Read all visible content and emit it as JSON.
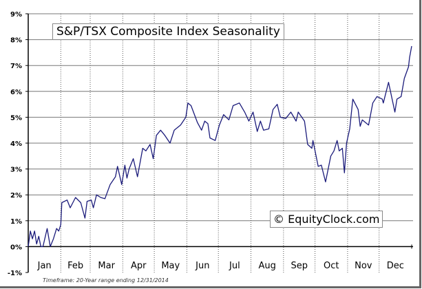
{
  "chart_data": {
    "type": "line",
    "title": "S&P/TSX Composite Index Seasonality",
    "watermark": "© EquityClock.com",
    "footnote": "Timeframe: 20-Year range ending 12/31/2014",
    "xlabel": "",
    "ylabel": "",
    "ylim": [
      -1,
      9
    ],
    "xlim": [
      0,
      365
    ],
    "yticks": [
      -1,
      0,
      1,
      2,
      3,
      4,
      5,
      6,
      7,
      8,
      9
    ],
    "ytick_labels": [
      "-1%",
      "0%",
      "1%",
      "2%",
      "3%",
      "4%",
      "5%",
      "6%",
      "7%",
      "8%",
      "9%"
    ],
    "month_labels": [
      "Jan",
      "Feb",
      "Mar",
      "Apr",
      "May",
      "Jun",
      "Jul",
      "Aug",
      "Sep",
      "Oct",
      "Nov",
      "Dec"
    ],
    "month_starts": [
      0,
      31,
      59,
      90,
      120,
      151,
      181,
      212,
      243,
      273,
      304,
      334,
      365
    ],
    "grid": true,
    "line_color": "#1a1a7a",
    "series": [
      {
        "name": "S&P/TSX Composite Index Seasonality",
        "x": [
          0,
          2,
          4,
          6,
          8,
          10,
          12,
          14,
          18,
          21,
          24,
          27,
          29,
          31,
          32,
          37,
          40,
          45,
          50,
          54,
          56,
          60,
          62,
          65,
          69,
          73,
          78,
          83,
          85,
          89,
          92,
          94,
          96,
          100,
          104,
          109,
          112,
          116,
          119,
          122,
          126,
          130,
          135,
          139,
          145,
          150,
          152,
          155,
          161,
          165,
          168,
          171,
          173,
          178,
          182,
          186,
          191,
          195,
          201,
          206,
          210,
          214,
          218,
          221,
          224,
          229,
          233,
          237,
          240,
          245,
          250,
          255,
          257,
          263,
          266,
          270,
          271,
          276,
          279,
          283,
          288,
          291,
          294,
          296,
          299,
          301,
          303,
          306,
          309,
          314,
          316,
          318,
          324,
          328,
          332,
          337,
          338,
          343,
          349,
          351,
          355,
          358,
          362,
          363,
          365
        ],
        "values": [
          0,
          0.6,
          0.3,
          0.6,
          0.1,
          0.4,
          0,
          0,
          0.7,
          0,
          0.3,
          0.7,
          0.6,
          0.85,
          1.7,
          1.8,
          1.5,
          1.9,
          1.7,
          1.1,
          1.75,
          1.8,
          1.5,
          2.0,
          1.9,
          1.85,
          2.4,
          2.7,
          3.1,
          2.4,
          3.15,
          2.65,
          3.0,
          3.4,
          2.7,
          3.8,
          3.7,
          3.95,
          3.4,
          4.3,
          4.5,
          4.3,
          4.0,
          4.5,
          4.7,
          5.0,
          5.55,
          5.45,
          4.8,
          4.5,
          4.85,
          4.75,
          4.2,
          4.1,
          4.7,
          5.1,
          4.9,
          5.45,
          5.55,
          5.2,
          4.85,
          5.2,
          4.45,
          4.85,
          4.5,
          4.55,
          5.3,
          5.5,
          5.0,
          4.95,
          5.2,
          4.85,
          5.2,
          4.85,
          3.95,
          3.8,
          4.1,
          3.1,
          3.15,
          2.5,
          3.5,
          3.7,
          4.1,
          3.7,
          3.8,
          2.85,
          4.0,
          4.55,
          5.7,
          5.3,
          4.65,
          4.9,
          4.7,
          5.55,
          5.8,
          5.7,
          5.55,
          6.35,
          5.2,
          5.7,
          5.8,
          6.5,
          6.95,
          7.3,
          7.75
        ]
      }
    ]
  }
}
